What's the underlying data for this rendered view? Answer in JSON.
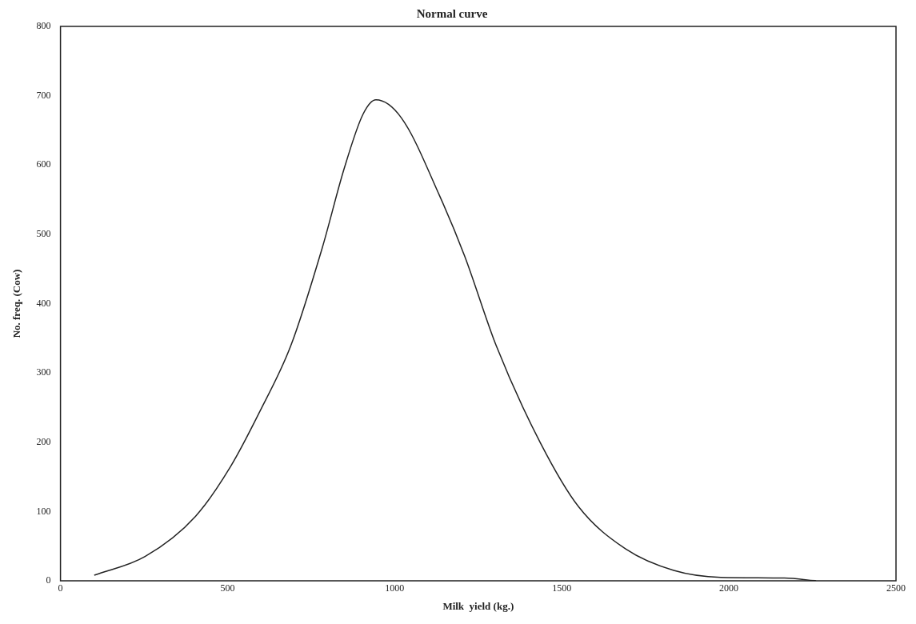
{
  "chart_data": {
    "type": "line",
    "title": "Normal curve",
    "xlabel": "Milk  yield (kg.)",
    "ylabel": "No. freq. (Cow)",
    "x": [
      101,
      253,
      404,
      509,
      594,
      689,
      783,
      849,
      905,
      944,
      1020,
      1134,
      1209,
      1304,
      1436,
      1550,
      1691,
      1835,
      1976,
      2166,
      2261
    ],
    "series": [
      {
        "color": "#222222",
        "values": [
          8,
          35,
          93,
          165,
          242,
          339,
          480,
          595,
          673,
          694,
          668,
          556,
          469,
          339,
          199,
          107,
          46,
          15,
          5,
          4,
          0
        ]
      }
    ],
    "xlim": [
      0,
      2500
    ],
    "xticks": [
      0,
      500,
      1000,
      1500,
      2000,
      2500
    ],
    "ylim": [
      0,
      800
    ],
    "yticks": [
      0,
      100,
      200,
      300,
      400,
      500,
      600,
      700,
      800
    ],
    "grid": false,
    "legend": false,
    "marker": "none",
    "line_style": "solid"
  }
}
